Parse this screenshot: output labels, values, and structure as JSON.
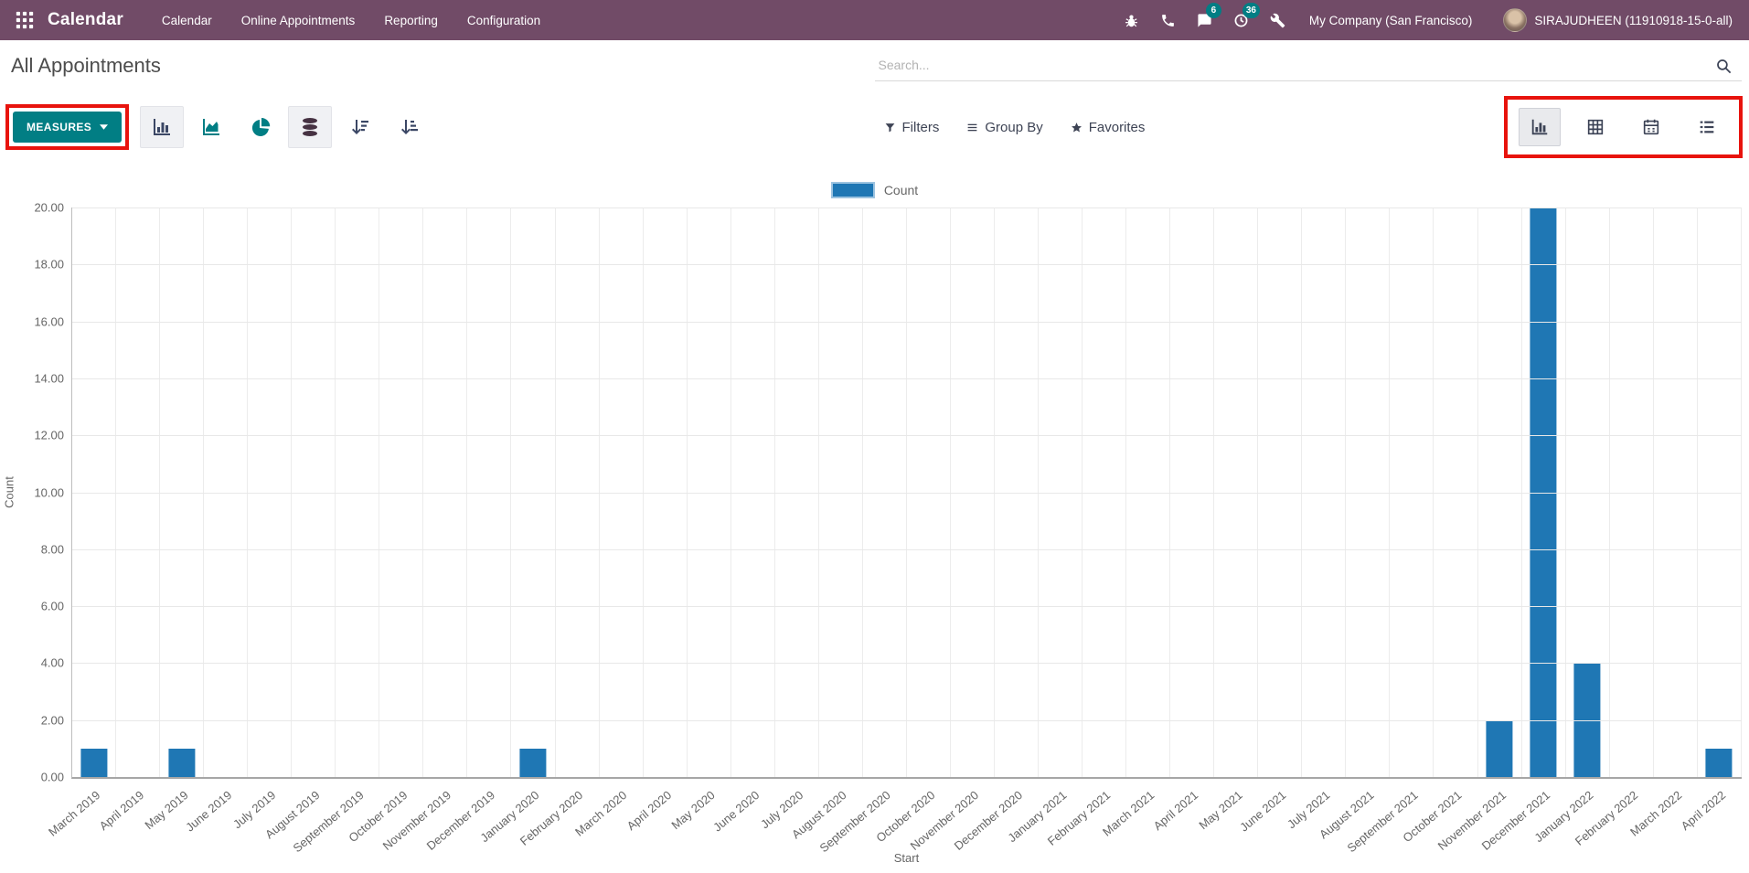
{
  "navbar": {
    "app_name": "Calendar",
    "menu_items": [
      "Calendar",
      "Online Appointments",
      "Reporting",
      "Configuration"
    ],
    "system_icons": [
      "bug-icon",
      "phone-icon",
      "chat-icon",
      "activity-clock-icon",
      "tools-icon"
    ],
    "chat_badge": "6",
    "activity_badge": "36",
    "company": "My Company (San Francisco)",
    "user": "SIRAJUDHEEN (11910918-15-0-all)",
    "colors": {
      "background": "#714B67",
      "badge": "#017e84"
    }
  },
  "breadcrumb": {
    "title": "All Appointments"
  },
  "search": {
    "placeholder": "Search...",
    "icon": "search-icon"
  },
  "control_panel": {
    "measures_label": "MEASURES",
    "measures_color": "#017e84",
    "chart_type_buttons": [
      {
        "name": "bar-chart-button",
        "icon": "bar",
        "active": true
      },
      {
        "name": "area-chart-button",
        "icon": "area",
        "active": false
      },
      {
        "name": "pie-chart-button",
        "icon": "pie",
        "active": false
      },
      {
        "name": "stacked-button",
        "icon": "stacked",
        "active": true
      },
      {
        "name": "sort-descending-button",
        "icon": "sortdesc",
        "active": false
      },
      {
        "name": "sort-ascending-button",
        "icon": "sortasc",
        "active": false
      }
    ],
    "filters_label": "Filters",
    "group_by_label": "Group By",
    "favorites_label": "Favorites",
    "view_switcher": [
      {
        "name": "graph-view-button",
        "icon": "bar",
        "active": true
      },
      {
        "name": "pivot-view-button",
        "icon": "pivot",
        "active": false
      },
      {
        "name": "calendar-view-button",
        "icon": "calendar",
        "active": false
      },
      {
        "name": "list-view-button",
        "icon": "list",
        "active": false
      }
    ],
    "annotation_color": "#e8130d"
  },
  "chart_data": {
    "type": "bar",
    "title": "",
    "legend": "Count",
    "legend_position": "top",
    "xlabel": "Start",
    "ylabel": "Count",
    "ylim": [
      0,
      20
    ],
    "ytick_step": 2,
    "ytick_format_decimals": 2,
    "grid": true,
    "bar_color": "#1f77b4",
    "categories": [
      "March 2019",
      "April 2019",
      "May 2019",
      "June 2019",
      "July 2019",
      "August 2019",
      "September 2019",
      "October 2019",
      "November 2019",
      "December 2019",
      "January 2020",
      "February 2020",
      "March 2020",
      "April 2020",
      "May 2020",
      "June 2020",
      "July 2020",
      "August 2020",
      "September 2020",
      "October 2020",
      "November 2020",
      "December 2020",
      "January 2021",
      "February 2021",
      "March 2021",
      "April 2021",
      "May 2021",
      "June 2021",
      "July 2021",
      "August 2021",
      "September 2021",
      "October 2021",
      "November 2021",
      "December 2021",
      "January 2022",
      "February 2022",
      "March 2022",
      "April 2022"
    ],
    "values": [
      1,
      0,
      1,
      0,
      0,
      0,
      0,
      0,
      0,
      0,
      1,
      0,
      0,
      0,
      0,
      0,
      0,
      0,
      0,
      0,
      0,
      0,
      0,
      0,
      0,
      0,
      0,
      0,
      0,
      0,
      0,
      0,
      2,
      20,
      4,
      0,
      0,
      1
    ]
  }
}
